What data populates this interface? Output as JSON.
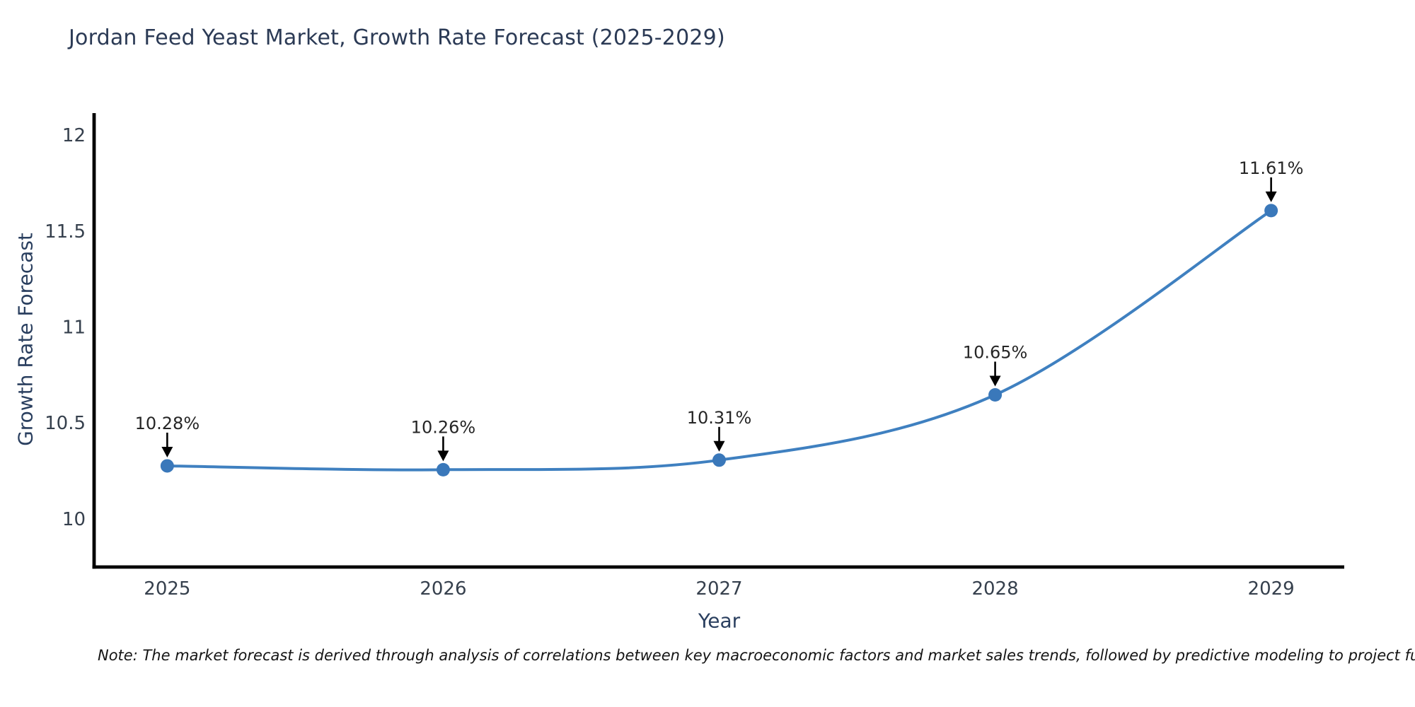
{
  "title": "Jordan Feed Yeast Market, Growth Rate Forecast (2025-2029)",
  "note": "Note: The market forecast is derived through analysis of correlations between key macroeconomic factors and market sales trends, followed by predictive modeling to project future sal",
  "chart_data": {
    "type": "line",
    "line_shape": "spline",
    "markers": true,
    "x": [
      2025,
      2026,
      2027,
      2028,
      2029
    ],
    "values": [
      10.28,
      10.26,
      10.31,
      10.65,
      11.61
    ],
    "point_labels": [
      "10.28%",
      "10.26%",
      "10.31%",
      "10.65%",
      "11.61%"
    ],
    "title": "Jordan Feed Yeast Market, Growth Rate Forecast (2025-2029)",
    "xlabel": "Year",
    "ylabel": "Growth Rate Forecast",
    "yticks": [
      10,
      10.5,
      11,
      11.5,
      12
    ],
    "xticks": [
      2025,
      2026,
      2027,
      2028,
      2029
    ],
    "ylim": [
      9.753,
      12.118
    ],
    "xlim": [
      2024.735,
      2029.265
    ],
    "grid": false,
    "legend": false,
    "colors": {
      "line": "#3f80c0",
      "marker": "#3a78ba",
      "axis": "#000000",
      "tick_label": "#36404d",
      "axis_title": "#2a3f5f",
      "annotation_text": "#262626",
      "annotation_arrow": "#000000",
      "title": "#2b3a55",
      "background": "#ffffff"
    }
  }
}
